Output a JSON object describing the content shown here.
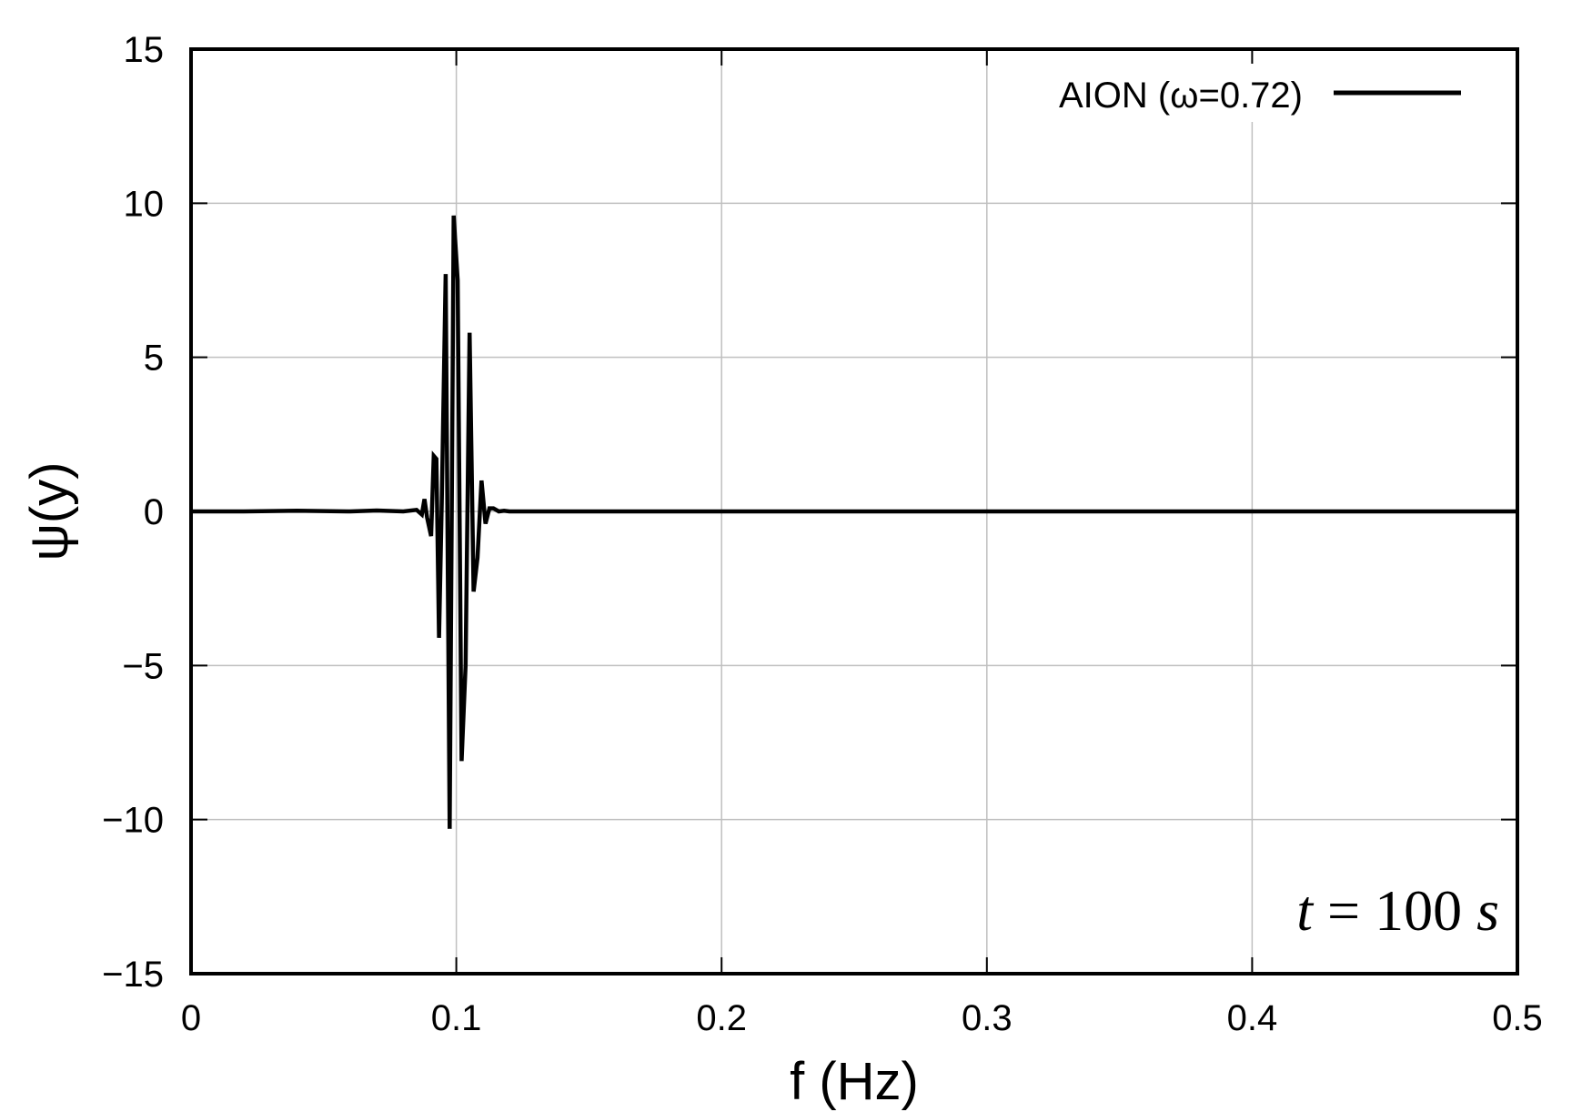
{
  "chart_data": {
    "type": "line",
    "title": "",
    "xlabel": "f (Hz)",
    "ylabel": "ψ(y)",
    "xlim": [
      0,
      0.5
    ],
    "ylim": [
      -15,
      15
    ],
    "xticks": [
      0,
      0.1,
      0.2,
      0.3,
      0.4,
      0.5
    ],
    "xtick_labels": [
      "0",
      "0.1",
      "0.2",
      "0.3",
      "0.4",
      "0.5"
    ],
    "yticks": [
      -15,
      -10,
      -5,
      0,
      5,
      10,
      15
    ],
    "ytick_labels": [
      "−15",
      "−10",
      "−5",
      "0",
      "5",
      "10",
      "15"
    ],
    "grid": true,
    "legend_position": "top-right",
    "annotation": {
      "var": "t",
      "eq": " = 100 ",
      "unit": "s"
    },
    "colors": {
      "line": "#000000",
      "grid": "#bfbfbf",
      "axes": "#000000"
    },
    "series": [
      {
        "name": "AION (ω=0.72)",
        "x": [
          0,
          0.02,
          0.04,
          0.06,
          0.07,
          0.08,
          0.085,
          0.087,
          0.088,
          0.089,
          0.0905,
          0.0915,
          0.0925,
          0.0935,
          0.0945,
          0.096,
          0.0975,
          0.099,
          0.1005,
          0.102,
          0.1035,
          0.105,
          0.1065,
          0.108,
          0.1095,
          0.111,
          0.1125,
          0.114,
          0.116,
          0.118,
          0.12,
          0.13,
          0.15,
          0.2,
          0.25,
          0.3,
          0.35,
          0.4,
          0.45,
          0.5
        ],
        "y": [
          0,
          0,
          0.02,
          0,
          0.03,
          0,
          0.05,
          -0.1,
          0.4,
          -0.2,
          -0.8,
          1.8,
          1.7,
          -4.1,
          0.3,
          7.7,
          -10.3,
          9.6,
          7.5,
          -8.1,
          -5.0,
          5.8,
          -2.6,
          -1.5,
          1.0,
          -0.4,
          0.1,
          0.1,
          0,
          0.02,
          0,
          0,
          0,
          0,
          0,
          0,
          0,
          0,
          0,
          0
        ]
      }
    ]
  }
}
